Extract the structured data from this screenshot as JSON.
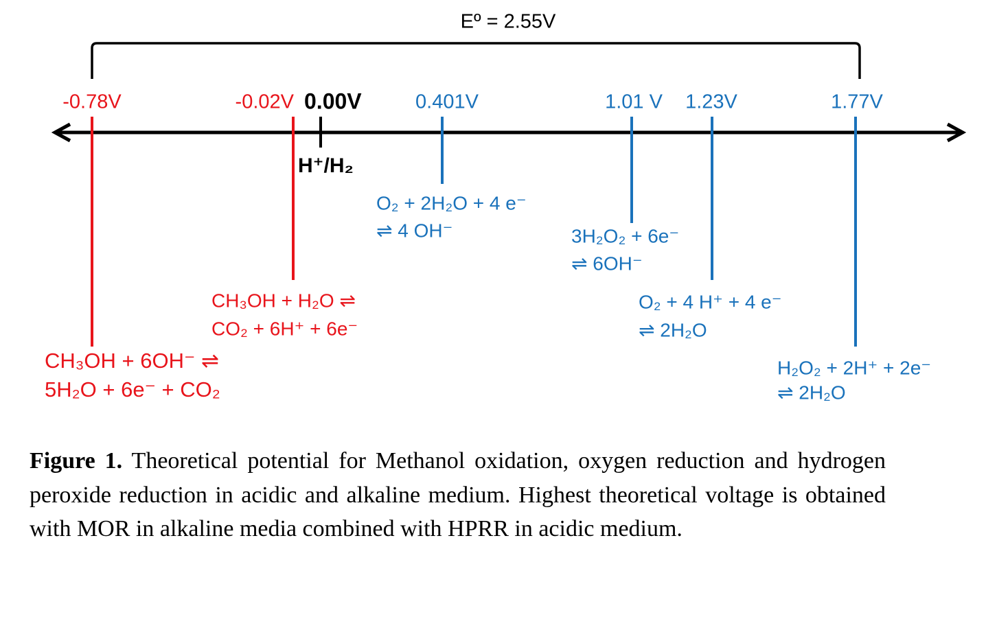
{
  "bracket_label": "Eº = 2.55V",
  "reference": {
    "label": "0.00V",
    "name": "H⁺/H₂"
  },
  "markers": [
    {
      "label": "-0.78V",
      "color": "#e8141b",
      "reaction": [
        "CH₃OH + 6OH⁻ ⇌",
        "5H₂O + 6e⁻ + CO₂"
      ]
    },
    {
      "label": "-0.02V",
      "color": "#e8141b",
      "reaction": [
        "CH₃OH + H₂O ⇌",
        "CO₂ + 6H⁺ + 6e⁻"
      ]
    },
    {
      "label": "0.401V",
      "color": "#1a72bb",
      "reaction": [
        "O₂ + 2H₂O + 4 e⁻",
        "⇌ 4 OH⁻"
      ]
    },
    {
      "label": "1.01 V",
      "color": "#1a72bb",
      "reaction": [
        "3H₂O₂ + 6e⁻",
        "⇌ 6OH⁻"
      ]
    },
    {
      "label": "1.23V",
      "color": "#1a72bb",
      "reaction": [
        "O₂ + 4 H⁺ + 4 e⁻",
        "⇌ 2H₂O"
      ]
    },
    {
      "label": "1.77V",
      "color": "#1a72bb",
      "reaction": [
        "H₂O₂ + 2H⁺ + 2e⁻",
        "⇌ 2H₂O"
      ]
    }
  ],
  "caption": {
    "lead": "Figure 1.",
    "text": "Theoretical potential for Methanol oxidation, oxygen reduction and hydrogen peroxide reduction in acidic and alkaline medium. Highest theoretical voltage is obtained with MOR in alkaline media combined with HPRR in acidic medium."
  }
}
